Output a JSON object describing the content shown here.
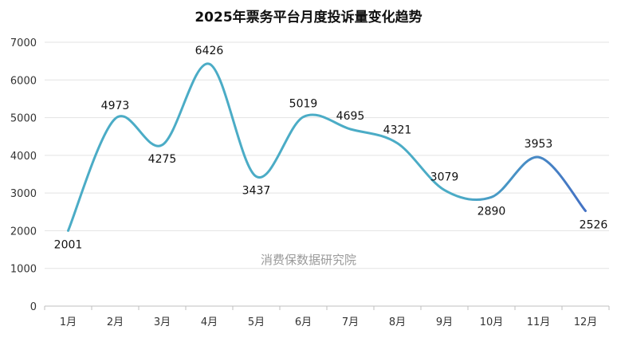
{
  "chart_data": {
    "type": "line",
    "title": "2025年票务平台月度投诉量变化趋势",
    "watermark": "消费保数据研究院",
    "categories": [
      "1月",
      "2月",
      "3月",
      "4月",
      "5月",
      "6月",
      "7月",
      "8月",
      "9月",
      "10月",
      "11月",
      "12月"
    ],
    "series": [
      {
        "values": [
          2001,
          4973,
          4275,
          6426,
          3437,
          5019,
          4695,
          4321,
          3079,
          2890,
          3953,
          2526
        ]
      }
    ],
    "data_labels": [
      "2001",
      "4973",
      "4275",
      "6426",
      "3437",
      "5019",
      "4695",
      "4321",
      "3079",
      "2890",
      "3953",
      "2526"
    ],
    "y_ticks": [
      "0",
      "1000",
      "2000",
      "3000",
      "4000",
      "5000",
      "6000",
      "7000"
    ],
    "ylim": [
      0,
      7000
    ],
    "xlabel": "",
    "ylabel": "",
    "grid": true,
    "line_style": "smooth",
    "colors": {
      "line_start": "#4bacc6",
      "line_end": "#4472c4",
      "grid": "#e3e3e3",
      "axis": "#bfbfbf"
    }
  }
}
